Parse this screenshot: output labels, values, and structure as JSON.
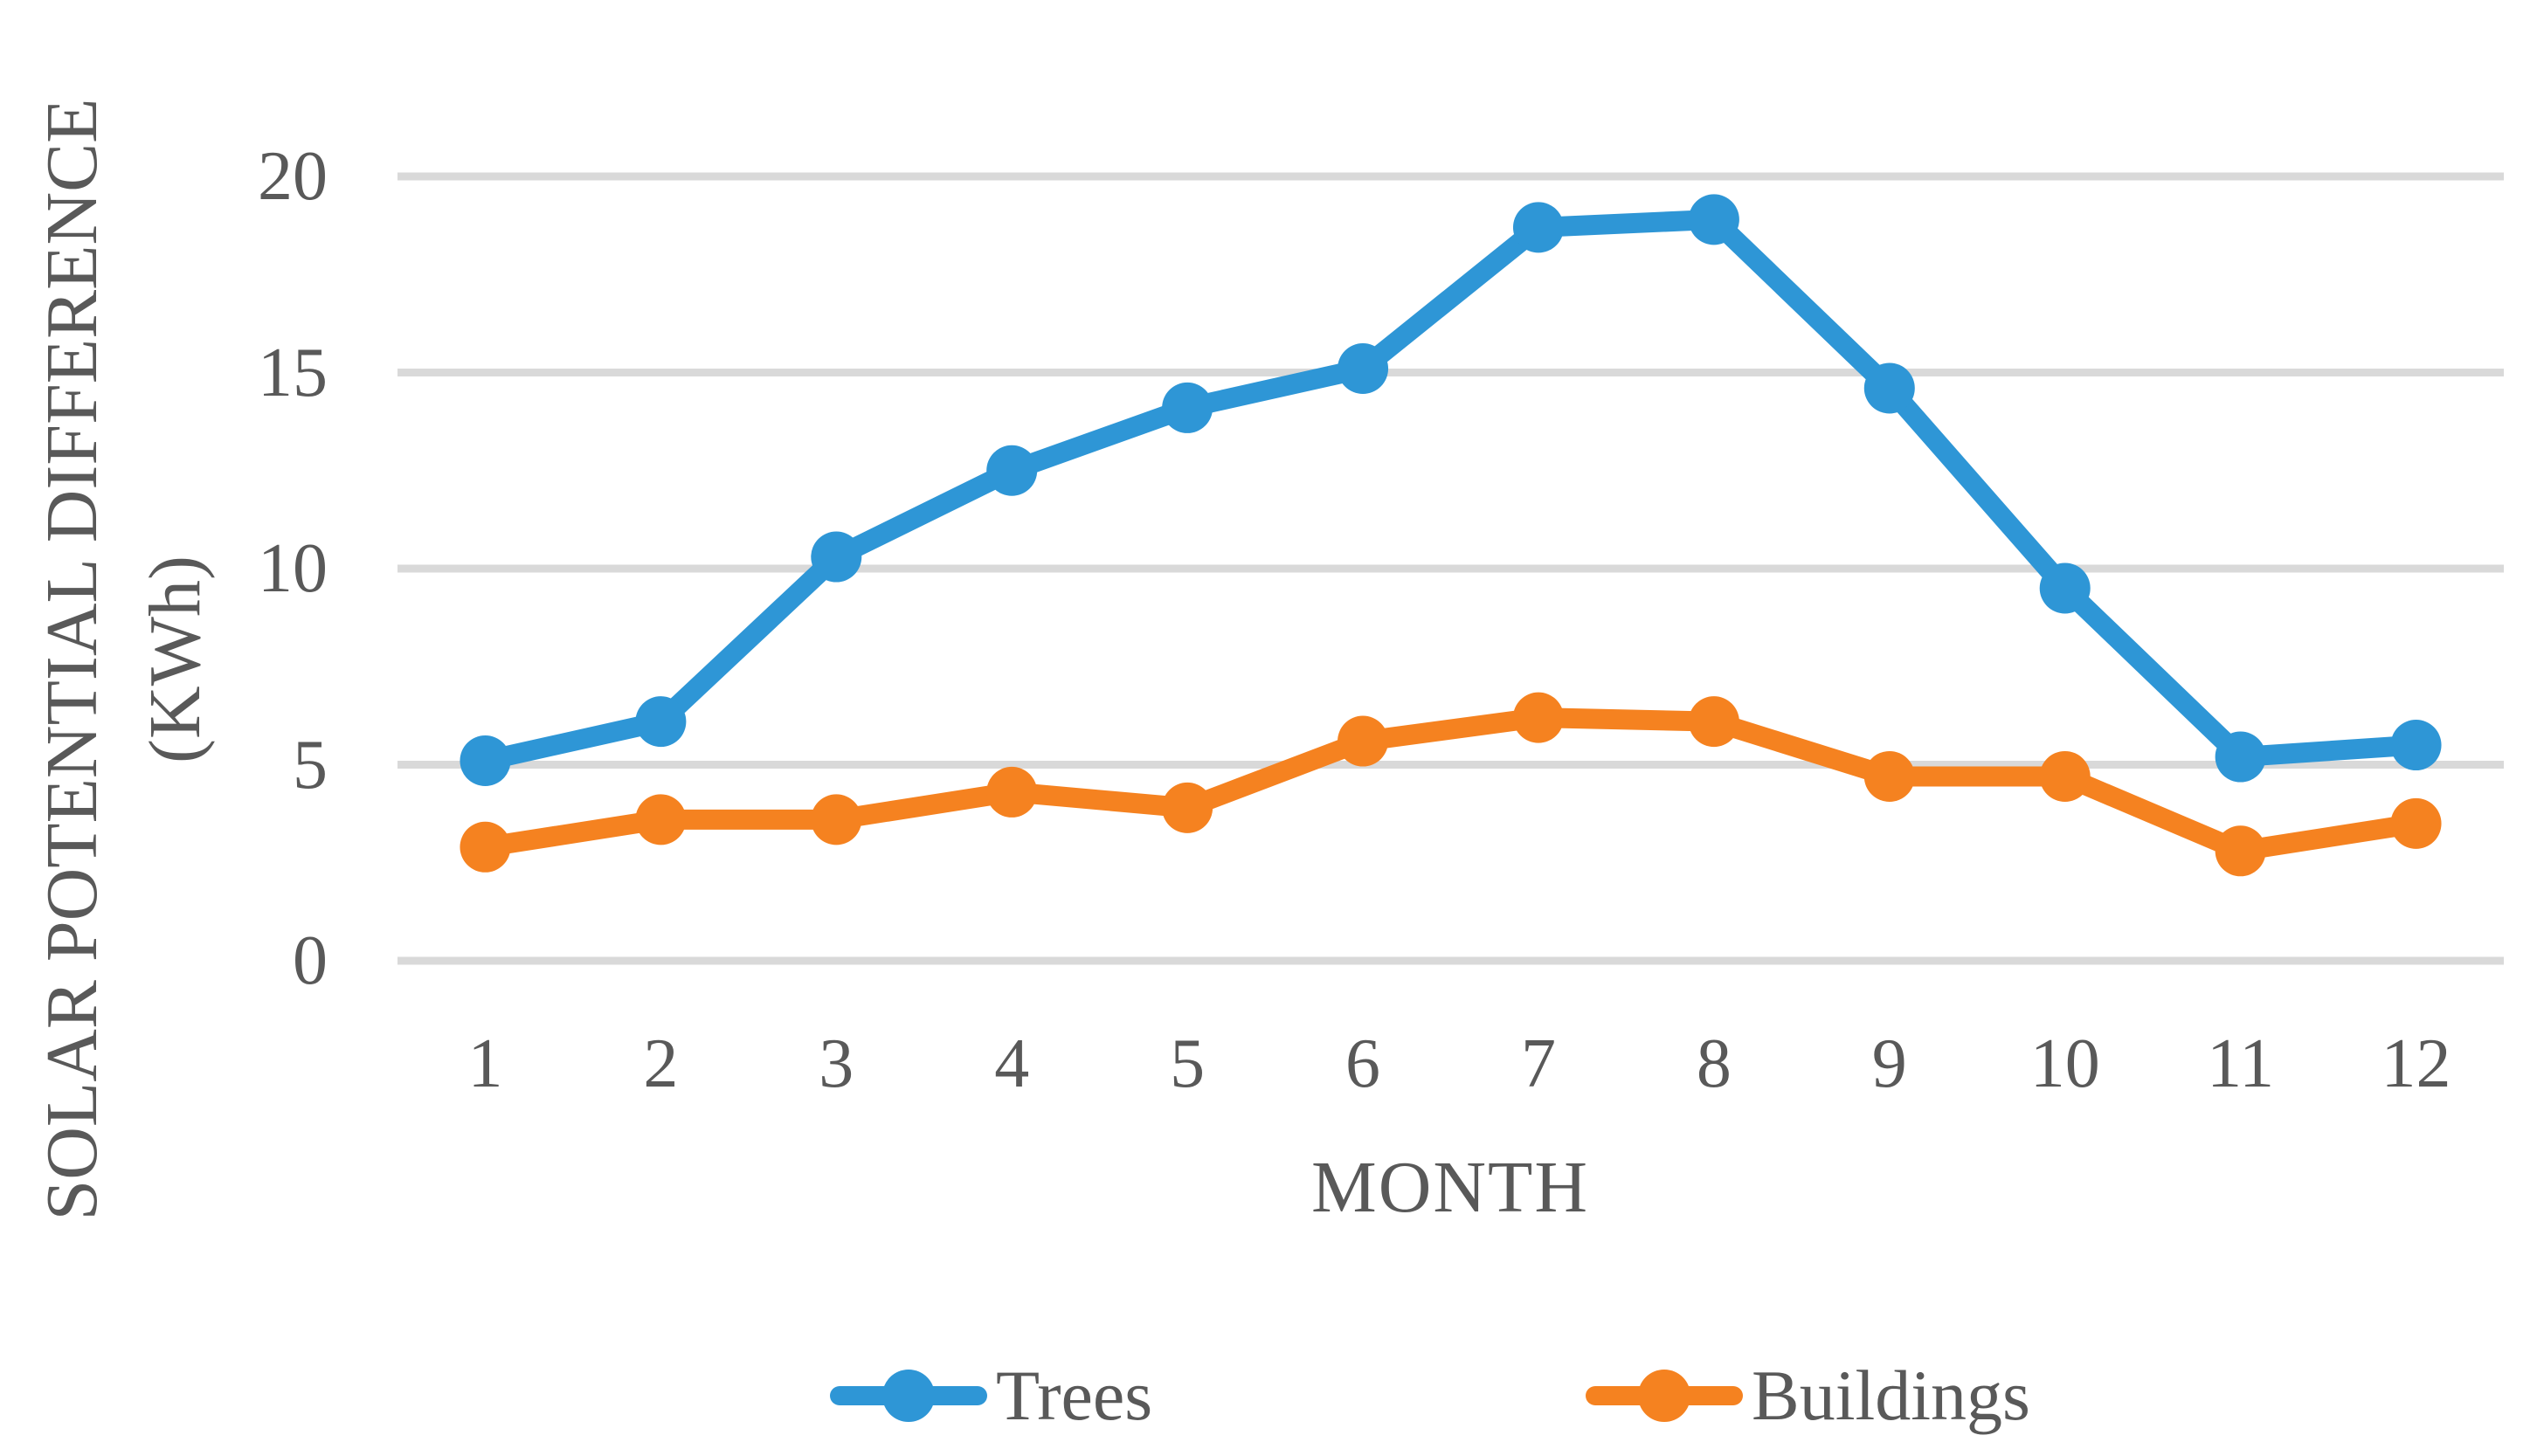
{
  "colors": {
    "background": "#FFFFFF",
    "grid": "#D9D9D9",
    "text": "#595959"
  },
  "chart_data": {
    "type": "line",
    "x": [
      "1",
      "2",
      "3",
      "4",
      "5",
      "6",
      "7",
      "8",
      "9",
      "10",
      "11",
      "12"
    ],
    "xlabel": "MONTH",
    "ylabel": "SOLAR POTENTIAL DIFFERENCE (KWh)",
    "ylabel_lines": [
      "SOLAR POTENTIAL DIFFERENCE",
      "(KWh)"
    ],
    "ylim": [
      0,
      20
    ],
    "yticks": [
      0,
      5,
      10,
      15,
      20
    ],
    "grid": "horizontal",
    "legend_position": "bottom",
    "series": [
      {
        "name": "Trees",
        "color": "#2E96D6",
        "values": [
          5.1,
          6.1,
          10.3,
          12.5,
          14.1,
          15.1,
          18.7,
          18.9,
          14.6,
          9.5,
          5.2,
          5.5
        ]
      },
      {
        "name": "Buildings",
        "color": "#F58220",
        "values": [
          2.9,
          3.6,
          3.6,
          4.3,
          3.9,
          5.6,
          6.2,
          6.1,
          4.7,
          4.7,
          2.8,
          3.5
        ]
      }
    ]
  }
}
